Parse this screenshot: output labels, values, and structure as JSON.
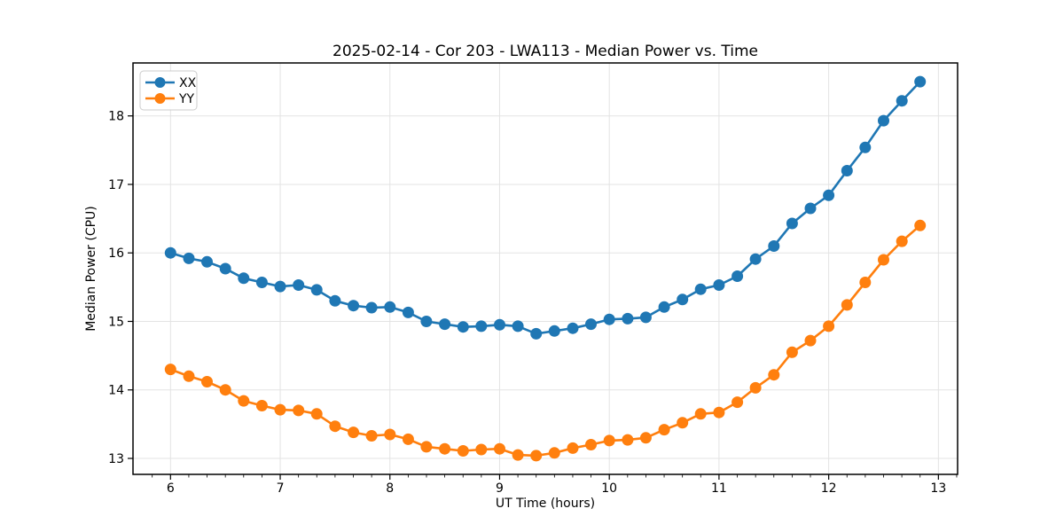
{
  "figure": {
    "title": "2025-02-14 - Cor 203 - LWA113 - Median Power vs. Time"
  },
  "chart_data": {
    "type": "line",
    "title": "2025-02-14 - Cor 203 - LWA113 - Median Power vs. Time",
    "xlabel": "UT Time (hours)",
    "ylabel": "Median Power (CPU)",
    "xlim": [
      5.658,
      13.175
    ],
    "ylim": [
      12.767,
      18.773
    ],
    "x_ticks": [
      6,
      7,
      8,
      9,
      10,
      11,
      12,
      13
    ],
    "y_ticks": [
      13,
      14,
      15,
      16,
      17,
      18
    ],
    "x_minor_tick_step": 0.16667,
    "grid": true,
    "grid_color": "#e3e3e3",
    "legend_position": "upper-left",
    "x": [
      6.0,
      6.167,
      6.333,
      6.5,
      6.667,
      6.833,
      7.0,
      7.167,
      7.333,
      7.5,
      7.667,
      7.833,
      8.0,
      8.167,
      8.333,
      8.5,
      8.667,
      8.833,
      9.0,
      9.167,
      9.333,
      9.5,
      9.667,
      9.833,
      10.0,
      10.167,
      10.333,
      10.5,
      10.667,
      10.833,
      11.0,
      11.167,
      11.333,
      11.5,
      11.667,
      11.833,
      12.0,
      12.167,
      12.333,
      12.5,
      12.667,
      12.833
    ],
    "series": [
      {
        "name": "XX",
        "color": "#1f77b4",
        "values": [
          16.0,
          15.92,
          15.87,
          15.77,
          15.63,
          15.57,
          15.51,
          15.53,
          15.46,
          15.3,
          15.23,
          15.2,
          15.21,
          15.13,
          15.0,
          14.96,
          14.92,
          14.93,
          14.95,
          14.93,
          14.82,
          14.86,
          14.9,
          14.96,
          15.03,
          15.04,
          15.06,
          15.21,
          15.32,
          15.47,
          15.53,
          15.66,
          15.91,
          16.1,
          16.43,
          16.65,
          16.84,
          17.2,
          17.54,
          17.93,
          18.22,
          18.5
        ]
      },
      {
        "name": "YY",
        "color": "#ff7f0e",
        "values": [
          14.3,
          14.2,
          14.12,
          14.0,
          13.84,
          13.77,
          13.71,
          13.7,
          13.65,
          13.47,
          13.38,
          13.33,
          13.35,
          13.28,
          13.17,
          13.14,
          13.11,
          13.13,
          13.14,
          13.05,
          13.04,
          13.08,
          13.15,
          13.2,
          13.26,
          13.27,
          13.3,
          13.42,
          13.52,
          13.65,
          13.67,
          13.82,
          14.03,
          14.22,
          14.55,
          14.72,
          14.93,
          15.24,
          15.57,
          15.9,
          16.17,
          16.4
        ]
      }
    ]
  }
}
